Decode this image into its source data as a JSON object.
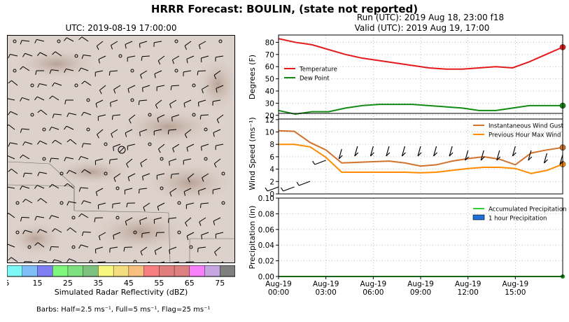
{
  "header": {
    "title": "HRRR Forecast: BOULIN, (state not reported)",
    "map_time": "UTC: 2019-08-19 17:00:00",
    "run": "Run (UTC): 2019 Aug 18, 23:00 f18",
    "valid": "Valid (UTC): 2019 Aug 19, 17:00"
  },
  "map": {
    "colorbar_label": "Simulated Radar Reflectivity (dBZ)",
    "colorbar_ticks": [
      "5",
      "15",
      "25",
      "35",
      "45",
      "55",
      "65",
      "75"
    ],
    "colorbar_colors": [
      "#7ef7f7",
      "#7fbef7",
      "#7f7ff5",
      "#7ff77f",
      "#7ee07e",
      "#7fc17f",
      "#f7f77f",
      "#f3dd7e",
      "#f7c07e",
      "#f77f7f",
      "#e07e7e",
      "#dd8080",
      "#f77ff7",
      "#c6a6e0",
      "#7f7f7f"
    ],
    "barb_note": "Barbs: Half=2.5 ms⁻¹, Full=5 ms⁻¹, Flag=25 ms⁻¹",
    "station_marker": "circle-with-barb",
    "background": "terrain-shaded-relief"
  },
  "chart_data": [
    {
      "type": "line",
      "ylabel": "Degrees (F)",
      "ylim": [
        17,
        86
      ],
      "yticks": [
        "20",
        "30",
        "40",
        "50",
        "60",
        "70",
        "80"
      ],
      "x": [
        "Aug-19 00:00",
        "01:00",
        "02:00",
        "03:00",
        "04:00",
        "05:00",
        "06:00",
        "07:00",
        "08:00",
        "09:00",
        "10:00",
        "11:00",
        "12:00",
        "13:00",
        "14:00",
        "15:00",
        "16:00",
        "17:00"
      ],
      "series": [
        {
          "name": "Temperature",
          "color": "#e41a1c",
          "values": [
            83,
            80,
            78,
            74,
            70,
            67,
            65,
            63,
            61,
            59,
            58,
            58,
            59,
            60,
            59,
            64,
            70,
            76
          ]
        },
        {
          "name": "Dew Point",
          "color": "#138a13",
          "values": [
            24,
            21,
            23,
            23,
            26,
            28,
            29,
            29,
            29,
            28,
            27,
            26,
            24,
            24,
            26,
            28,
            28,
            28
          ]
        }
      ],
      "legend": "center-left",
      "grid": true
    },
    {
      "type": "line",
      "ylabel": "Wind Speed (ms⁻¹)",
      "ylim": [
        0,
        13
      ],
      "yticks": [
        "0",
        "2",
        "4",
        "6",
        "8",
        "10",
        "12"
      ],
      "series": [
        {
          "name": "Instantaneous Wind Gust",
          "color": "#d2722b",
          "values": [
            10.2,
            10.1,
            8.3,
            7.1,
            5.0,
            5.1,
            5.2,
            5.3,
            5.0,
            4.5,
            4.7,
            5.3,
            5.7,
            6.0,
            5.6,
            4.7,
            6.6,
            7.1,
            7.5
          ]
        },
        {
          "name": "Previous Hour Max Wind",
          "color": "#ff8c00",
          "values": [
            8.0,
            8.0,
            7.6,
            5.9,
            3.5,
            3.5,
            3.5,
            3.5,
            3.5,
            3.4,
            3.5,
            3.8,
            4.1,
            4.3,
            4.3,
            4.1,
            3.3,
            3.8,
            4.8
          ]
        }
      ],
      "barbs": "wind barbs along bottom",
      "legend": "top-right",
      "grid": true
    },
    {
      "type": "bar",
      "ylabel": "Precipitation (in)",
      "ylim": [
        0,
        0.1
      ],
      "yticks": [
        "0.00",
        "0.02",
        "0.04",
        "0.06",
        "0.08",
        "0.10"
      ],
      "series": [
        {
          "name": "Accumulated Precipitation",
          "color": "#32cd32",
          "values": [
            0
          ]
        },
        {
          "name": "1 hour Precipitation",
          "color": "#1f6fd6",
          "values": [
            0
          ]
        }
      ],
      "xticks": [
        [
          "Aug-19",
          "00:00"
        ],
        [
          "Aug-19",
          "03:00"
        ],
        [
          "Aug-19",
          "06:00"
        ],
        [
          "Aug-19",
          "09:00"
        ],
        [
          "Aug-19",
          "12:00"
        ],
        [
          "Aug-19",
          "15:00"
        ]
      ],
      "legend": "top-right",
      "grid": true
    }
  ]
}
